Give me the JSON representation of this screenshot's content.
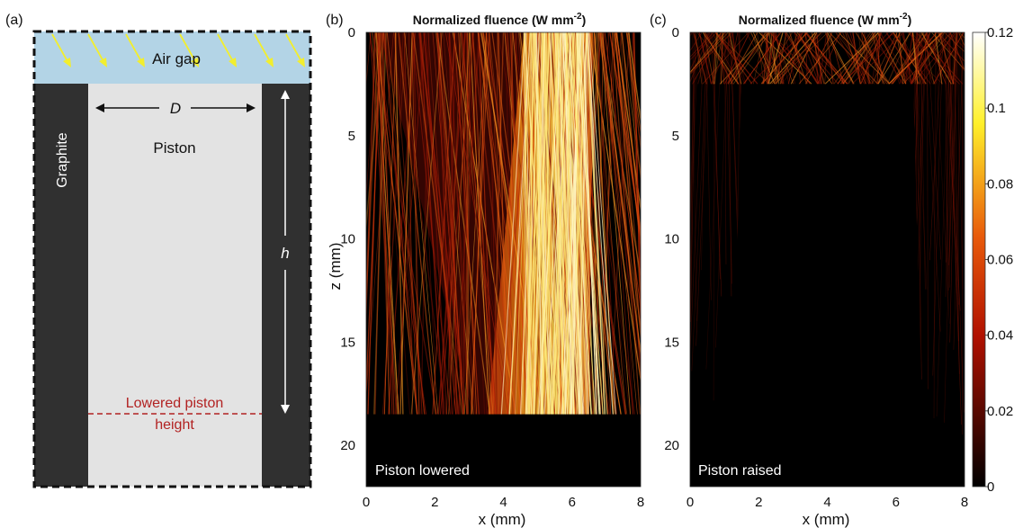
{
  "panel_a": {
    "label": "(a)",
    "air_gap": "Air gap",
    "graphite": "Graphite",
    "piston": "Piston",
    "diameter": "D",
    "height": "h",
    "lowered_line_1": "Lowered piston",
    "lowered_line_2": "height",
    "colors": {
      "air": "#b3d4e6",
      "graphite": "#303030",
      "piston": "#e3e3e3",
      "rays": "#f2ee2e",
      "lowered": "#b22222"
    }
  },
  "chart_data": [
    {
      "type": "heatmap",
      "panel_label": "(b)",
      "title": "Normalized fluence (W mm",
      "title_exponent": "-2",
      "title_suffix": ")",
      "xlabel": "x (mm)",
      "ylabel": "z (mm)",
      "xlim": [
        0,
        8
      ],
      "ylim": [
        0,
        22
      ],
      "xticks": [
        "0",
        "2",
        "4",
        "6",
        "8"
      ],
      "yticks": [
        "0",
        "5",
        "10",
        "15",
        "20"
      ],
      "annotation": "Piston lowered",
      "piston_top_z": 18.5,
      "bright_band_x": [
        4.6,
        6.5
      ]
    },
    {
      "type": "heatmap",
      "panel_label": "(c)",
      "title": "Normalized fluence (W mm",
      "title_exponent": "-2",
      "title_suffix": ")",
      "xlabel": "x (mm)",
      "ylabel": "",
      "xlim": [
        0,
        8
      ],
      "ylim": [
        0,
        22
      ],
      "xticks": [
        "0",
        "2",
        "4",
        "6",
        "8"
      ],
      "yticks": [
        "0",
        "5",
        "10",
        "15",
        "20"
      ],
      "annotation": "Piston raised",
      "piston_top_z": 2.5
    }
  ],
  "colorbar": {
    "range": [
      0,
      0.12
    ],
    "ticks": [
      "0",
      "0.02",
      "0.04",
      "0.06",
      "0.08",
      "0.1",
      "0.12"
    ],
    "colormap": "hot"
  }
}
